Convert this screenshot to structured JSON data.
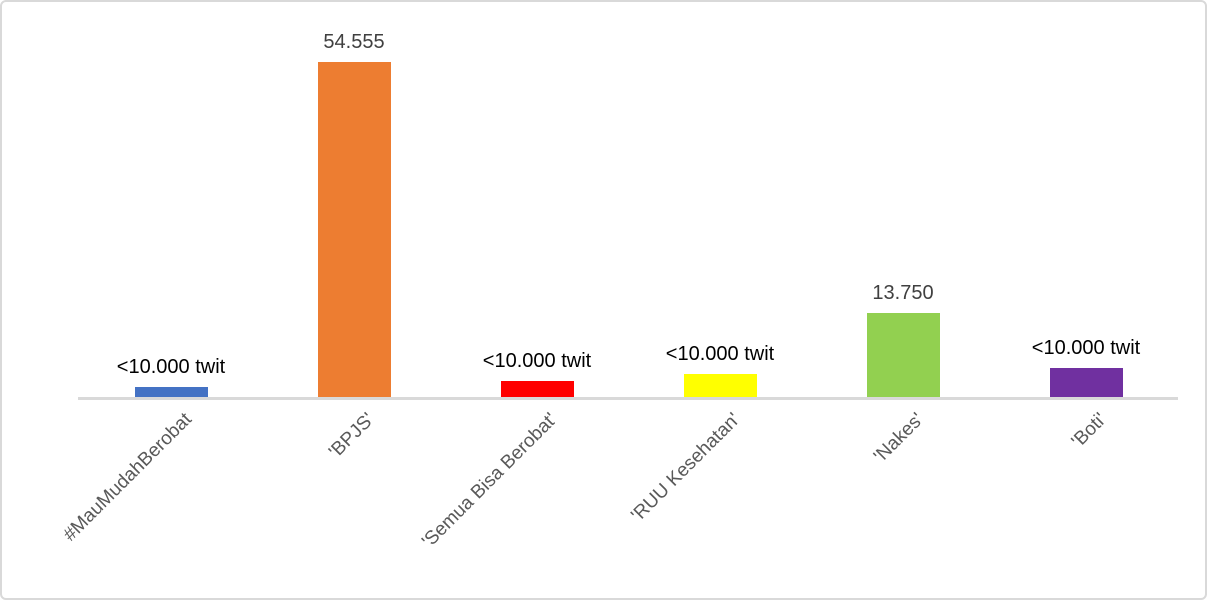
{
  "chart_data": {
    "type": "bar",
    "title": "",
    "xlabel": "",
    "ylabel": "",
    "categories": [
      "#MauMudahBerobat",
      "'BPJS'",
      "'Semua Bisa Berobat'",
      "'RUU Kesehatan'",
      "'Nakes'",
      "'Boti'"
    ],
    "values": [
      1800,
      54555,
      2800,
      3900,
      13750,
      4900
    ],
    "data_labels": [
      "<10.000 twit",
      "54.555",
      "<10.000 twit",
      "<10.000 twit",
      "13.750",
      "<10.000 twit"
    ],
    "bar_colors": [
      "#4472C4",
      "#ED7D31",
      "#FF0000",
      "#FFFF00",
      "#92D050",
      "#7030A0"
    ],
    "data_label_colors": [
      "#000000",
      "#404040",
      "#000000",
      "#000000",
      "#404040",
      "#000000"
    ],
    "category_label_color": "#595959",
    "axis_line_color": "#D9D9D9",
    "frame_border_color": "#D9D9D9",
    "background_color": "#FFFFFF",
    "ylim": [
      0,
      60000
    ],
    "grid": false,
    "legend": false,
    "category_label_rotation_deg": -45
  }
}
